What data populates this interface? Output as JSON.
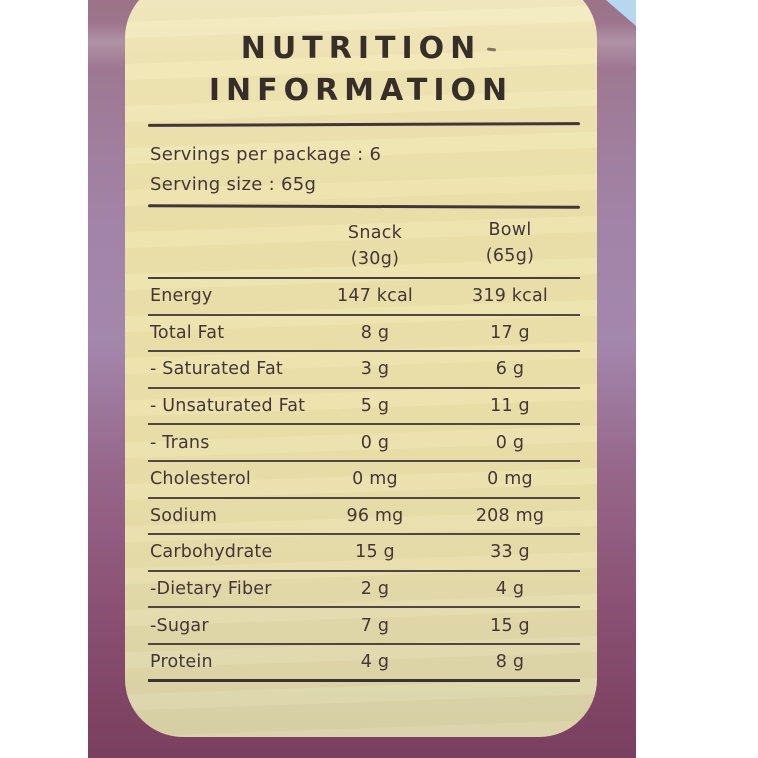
{
  "label": {
    "title_line1": "NUTRITION",
    "title_line2": "INFORMATION",
    "servings_per_package": "Servings per package : 6",
    "serving_size": "Serving size : 65g",
    "columns": [
      {
        "name": "Snack",
        "size": "(30g)"
      },
      {
        "name": "Bowl",
        "size": "(65g)"
      }
    ],
    "rows": [
      {
        "name": "Energy",
        "snack": "147 kcal",
        "bowl": "319 kcal"
      },
      {
        "name": "Total Fat",
        "snack": "8 g",
        "bowl": "17 g"
      },
      {
        "name": "- Saturated Fat",
        "snack": "3 g",
        "bowl": "6 g"
      },
      {
        "name": "- Unsaturated Fat",
        "snack": "5 g",
        "bowl": "11 g"
      },
      {
        "name": "- Trans",
        "snack": "0 g",
        "bowl": "0 g"
      },
      {
        "name": "Cholesterol",
        "snack": "0 mg",
        "bowl": "0 mg"
      },
      {
        "name": "Sodium",
        "snack": "96 mg",
        "bowl": "208 mg"
      },
      {
        "name": "Carbohydrate",
        "snack": "15 g",
        "bowl": "33 g"
      },
      {
        "name": "-Dietary Fiber",
        "snack": "2 g",
        "bowl": "4 g"
      },
      {
        "name": "-Sugar",
        "snack": "7 g",
        "bowl": "15 g"
      },
      {
        "name": "Protein",
        "snack": "4 g",
        "bowl": "8 g"
      }
    ]
  },
  "colors": {
    "pouch_maroon": "#8b5174",
    "label_cream": "#ede2ab",
    "ink": "#43343a",
    "sky_glimpse": "#b5d8ef",
    "margin_white": "#ffffff"
  }
}
